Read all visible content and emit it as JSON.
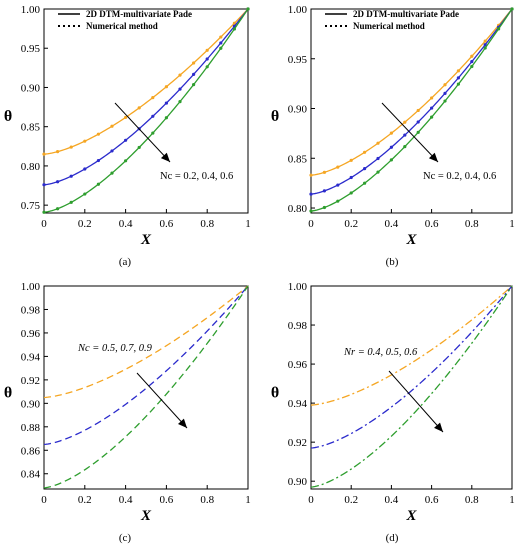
{
  "colors": {
    "orange": "#f5a623",
    "blue": "#2b2bcc",
    "green": "#2e9e2e",
    "axis": "#000000"
  },
  "legend": {
    "solid": "2D DTM-multivariate Pade",
    "dotted": "Numerical method"
  },
  "chart_data": [
    {
      "panel": "a",
      "caption": "(a)",
      "type": "line",
      "xlabel": "X",
      "ylabel": "θ",
      "xlim": [
        0,
        1
      ],
      "ylim": [
        0.74,
        1.0
      ],
      "xticks": [
        "0",
        "0.2",
        "0.4",
        "0.6",
        "0.8",
        "1"
      ],
      "yticks": [
        "0.75",
        "0.80",
        "0.85",
        "0.90",
        "0.95",
        "1.00"
      ],
      "ytick_values": [
        0.75,
        0.8,
        0.85,
        0.9,
        0.95,
        1.0
      ],
      "legend": true,
      "annotation": "Nc = 0.2, 0.4, 0.6",
      "annotation_style": "normal",
      "series": [
        {
          "color": "orange",
          "style": "solid",
          "markers": true,
          "theta0": 0.815
        },
        {
          "color": "blue",
          "style": "solid",
          "markers": true,
          "theta0": 0.776
        },
        {
          "color": "green",
          "style": "solid",
          "markers": true,
          "theta0": 0.741
        }
      ]
    },
    {
      "panel": "b",
      "caption": "(b)",
      "type": "line",
      "xlabel": "X",
      "ylabel": "θ",
      "xlim": [
        0,
        1
      ],
      "ylim": [
        0.795,
        1.0
      ],
      "xticks": [
        "0",
        "0.2",
        "0.4",
        "0.6",
        "0.8",
        "1"
      ],
      "yticks": [
        "0.80",
        "0.85",
        "0.90",
        "0.95",
        "1.00"
      ],
      "ytick_values": [
        0.8,
        0.85,
        0.9,
        0.95,
        1.0
      ],
      "legend": true,
      "annotation": "Nc = 0.2, 0.4, 0.6",
      "annotation_style": "normal",
      "series": [
        {
          "color": "orange",
          "style": "solid",
          "markers": true,
          "theta0": 0.833
        },
        {
          "color": "blue",
          "style": "solid",
          "markers": true,
          "theta0": 0.814
        },
        {
          "color": "green",
          "style": "solid",
          "markers": true,
          "theta0": 0.797
        }
      ]
    },
    {
      "panel": "c",
      "caption": "(c)",
      "type": "line",
      "xlabel": "X",
      "ylabel": "θ",
      "xlim": [
        0,
        1
      ],
      "ylim": [
        0.827,
        1.0
      ],
      "xticks": [
        "0",
        "0.2",
        "0.4",
        "0.6",
        "0.8",
        "1"
      ],
      "yticks": [
        "0.84",
        "0.86",
        "0.88",
        "0.90",
        "0.92",
        "0.94",
        "0.96",
        "0.98",
        "1.00"
      ],
      "ytick_values": [
        0.84,
        0.86,
        0.88,
        0.9,
        0.92,
        0.94,
        0.96,
        0.98,
        1.0
      ],
      "legend": false,
      "annotation": "Nc = 0.5, 0.7, 0.9",
      "annotation_style": "italic",
      "series": [
        {
          "color": "orange",
          "style": "dashed",
          "markers": false,
          "theta0": 0.905
        },
        {
          "color": "blue",
          "style": "dashed",
          "markers": false,
          "theta0": 0.865
        },
        {
          "color": "green",
          "style": "dashed",
          "markers": false,
          "theta0": 0.828
        }
      ]
    },
    {
      "panel": "d",
      "caption": "(d)",
      "type": "line",
      "xlabel": "X",
      "ylabel": "θ",
      "xlim": [
        0,
        1
      ],
      "ylim": [
        0.896,
        1.0
      ],
      "xticks": [
        "0",
        "0.2",
        "0.4",
        "0.6",
        "0.8",
        "1"
      ],
      "yticks": [
        "0.90",
        "0.92",
        "0.94",
        "0.96",
        "0.98",
        "1.00"
      ],
      "ytick_values": [
        0.9,
        0.92,
        0.94,
        0.96,
        0.98,
        1.0
      ],
      "legend": false,
      "annotation": "Nr = 0.4, 0.5, 0.6",
      "annotation_style": "italic",
      "series": [
        {
          "color": "orange",
          "style": "dashdot",
          "markers": false,
          "theta0": 0.939
        },
        {
          "color": "blue",
          "style": "dashdot",
          "markers": false,
          "theta0": 0.917
        },
        {
          "color": "green",
          "style": "dashdot",
          "markers": false,
          "theta0": 0.897
        }
      ]
    }
  ]
}
